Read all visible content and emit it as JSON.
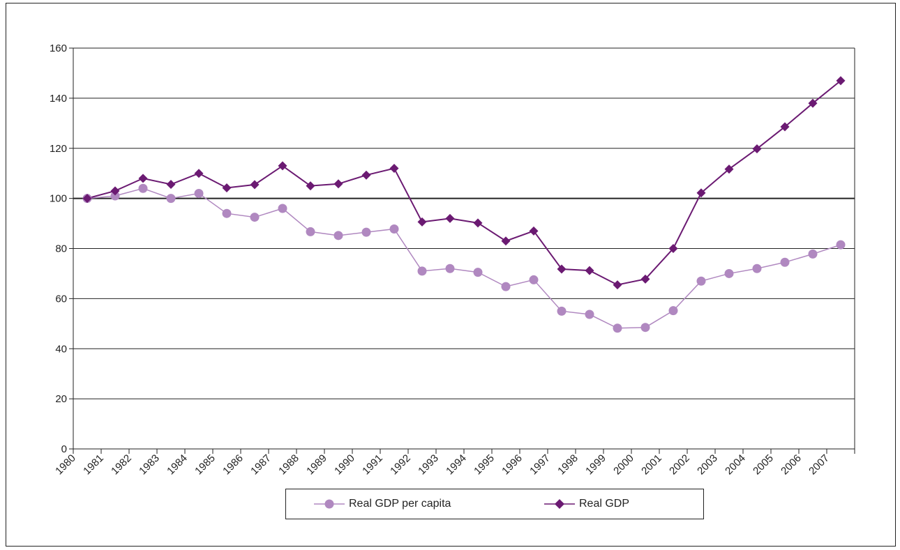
{
  "chart_data": {
    "type": "line",
    "x": [
      "1980",
      "1981",
      "1982",
      "1983",
      "1984",
      "1985",
      "1986",
      "1987",
      "1988",
      "1989",
      "1990",
      "1991",
      "1992",
      "1993",
      "1994",
      "1995",
      "1996",
      "1997",
      "1998",
      "1999",
      "2000",
      "2001",
      "2002",
      "2003",
      "2004",
      "2005",
      "2006",
      "2007"
    ],
    "series": [
      {
        "name": "Real GDP per capita",
        "color": "#b088c0",
        "marker": "circle",
        "values": [
          100,
          101,
          104,
          100,
          102,
          94,
          92.5,
          96,
          86.7,
          85.2,
          86.5,
          87.8,
          71,
          72,
          70.5,
          64.8,
          67.5,
          55,
          53.7,
          48.2,
          48.5,
          55.2,
          67,
          70,
          72,
          74.5,
          77.8,
          81.5
        ]
      },
      {
        "name": "Real GDP",
        "color": "#6b1a72",
        "marker": "diamond",
        "values": [
          100,
          103,
          108,
          105.6,
          110,
          104.2,
          105.5,
          113,
          105,
          105.8,
          109.3,
          112,
          90.6,
          92,
          90.2,
          83,
          87,
          71.8,
          71.2,
          65.5,
          67.8,
          80,
          102.2,
          111.7,
          119.8,
          128.6,
          138,
          147
        ]
      }
    ],
    "y_ticks": [
      "0",
      "20",
      "40",
      "60",
      "80",
      "100",
      "120",
      "140",
      "160"
    ],
    "ylim": [
      0,
      160
    ],
    "reference_line": 100,
    "title": "",
    "xlabel": "",
    "ylabel": "",
    "grid": "horizontal",
    "legend": "bottom-center"
  },
  "legend": {
    "items": [
      "Real GDP per capita",
      "Real GDP"
    ]
  }
}
